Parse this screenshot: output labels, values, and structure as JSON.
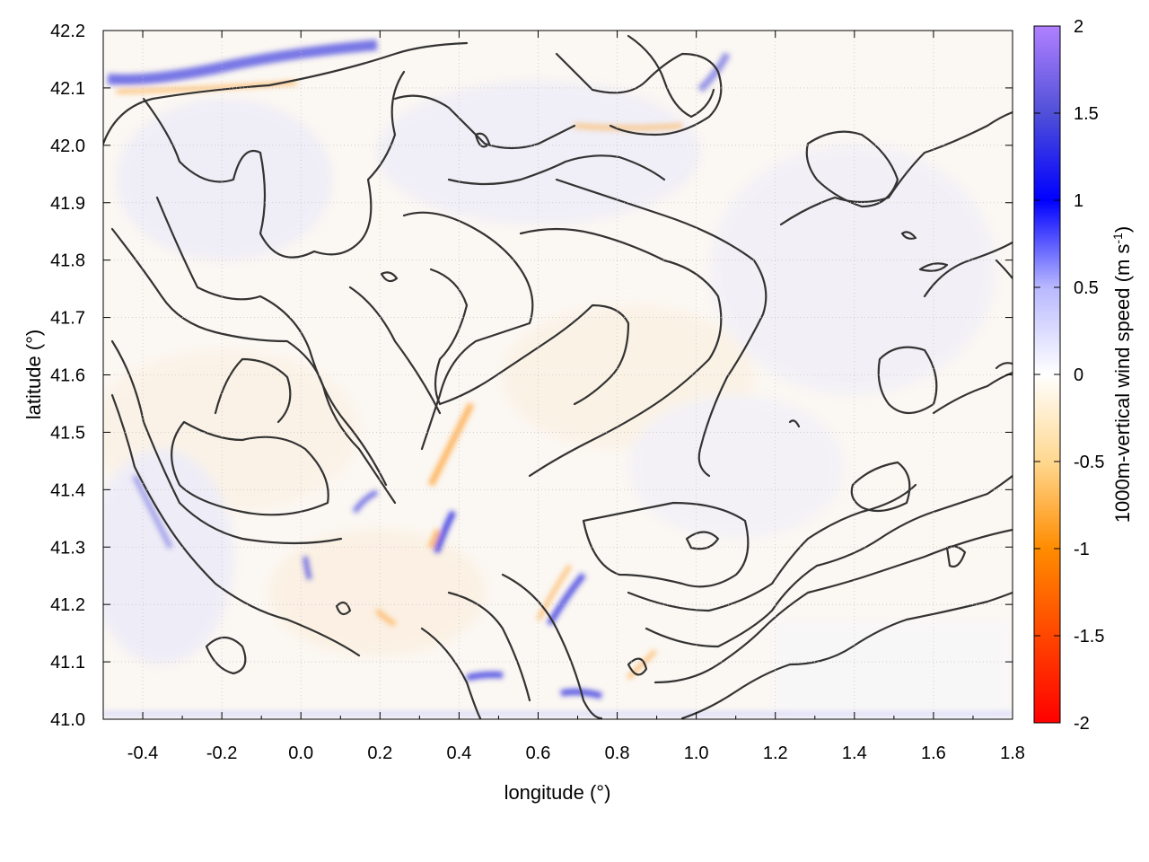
{
  "chart_data": {
    "type": "heatmap",
    "title": "",
    "xlabel": "longitude (°)",
    "ylabel": "latitude (°)",
    "xlim": [
      -0.5,
      1.8
    ],
    "ylim": [
      41.0,
      42.2
    ],
    "xticks": [
      -0.4,
      -0.2,
      0.0,
      0.2,
      0.4,
      0.6,
      0.8,
      1.0,
      1.2,
      1.4,
      1.6,
      1.8
    ],
    "xtick_labels": [
      "-0.4",
      "-0.2",
      "0.0",
      "0.2",
      "0.4",
      "0.6",
      "0.8",
      "1.0",
      "1.2",
      "1.4",
      "1.6",
      "1.8"
    ],
    "yticks": [
      41.0,
      41.1,
      41.2,
      41.3,
      41.4,
      41.5,
      41.6,
      41.7,
      41.8,
      41.9,
      42.0,
      42.1,
      42.2
    ],
    "ytick_labels": [
      "41.0",
      "41.1",
      "41.2",
      "41.3",
      "41.4",
      "41.5",
      "41.6",
      "41.7",
      "41.8",
      "41.9",
      "42.0",
      "42.1",
      "42.2"
    ],
    "grid": true,
    "colorbar": {
      "label": "1000m-vertical wind speed (m s",
      "label_superscript": "-1",
      "label_suffix": ")",
      "range": [
        -2,
        2
      ],
      "ticks": [
        -2,
        -1.5,
        -1,
        -0.5,
        0,
        0.5,
        1,
        1.5,
        2
      ],
      "tick_labels": [
        "-2",
        "-1.5",
        "-1",
        "-0.5",
        "0",
        "0.5",
        "1",
        "1.5",
        "2"
      ],
      "colors": [
        "#ff0000",
        "#ff8c00",
        "#ffa500",
        "#ffe4b0",
        "#ffffff",
        "#c8c8ff",
        "#0000ff",
        "#4040d0",
        "#b080ff"
      ]
    },
    "notable_features": [
      {
        "description": "strong updraft band",
        "lon": [
          -0.45,
          0.1
        ],
        "lat": 42.12,
        "value": 1.2
      },
      {
        "description": "updraft streak",
        "lon": 0.37,
        "lat": 41.31,
        "value": 1.0
      },
      {
        "description": "downdraft streak",
        "lon": 0.34,
        "lat": 41.4,
        "value": -0.9
      },
      {
        "description": "updraft cluster",
        "lon": 0.65,
        "lat": 41.22,
        "value": 1.0
      },
      {
        "description": "updraft cluster",
        "lon": 0.5,
        "lat": 41.08,
        "value": 1.0
      },
      {
        "description": "updraft cluster",
        "lon": 0.7,
        "lat": 41.05,
        "value": 1.0
      },
      {
        "description": "weak field (sea)",
        "lon": [
          1.4,
          1.8
        ],
        "lat": [
          41.0,
          41.2
        ],
        "value": 0.05
      }
    ],
    "overlay": "terrain elevation contours (black lines)"
  },
  "colors": {
    "contour": "#333333",
    "grid": "#c8c8c8",
    "positive": "#3a3ae0",
    "negative": "#ff9a1a"
  }
}
